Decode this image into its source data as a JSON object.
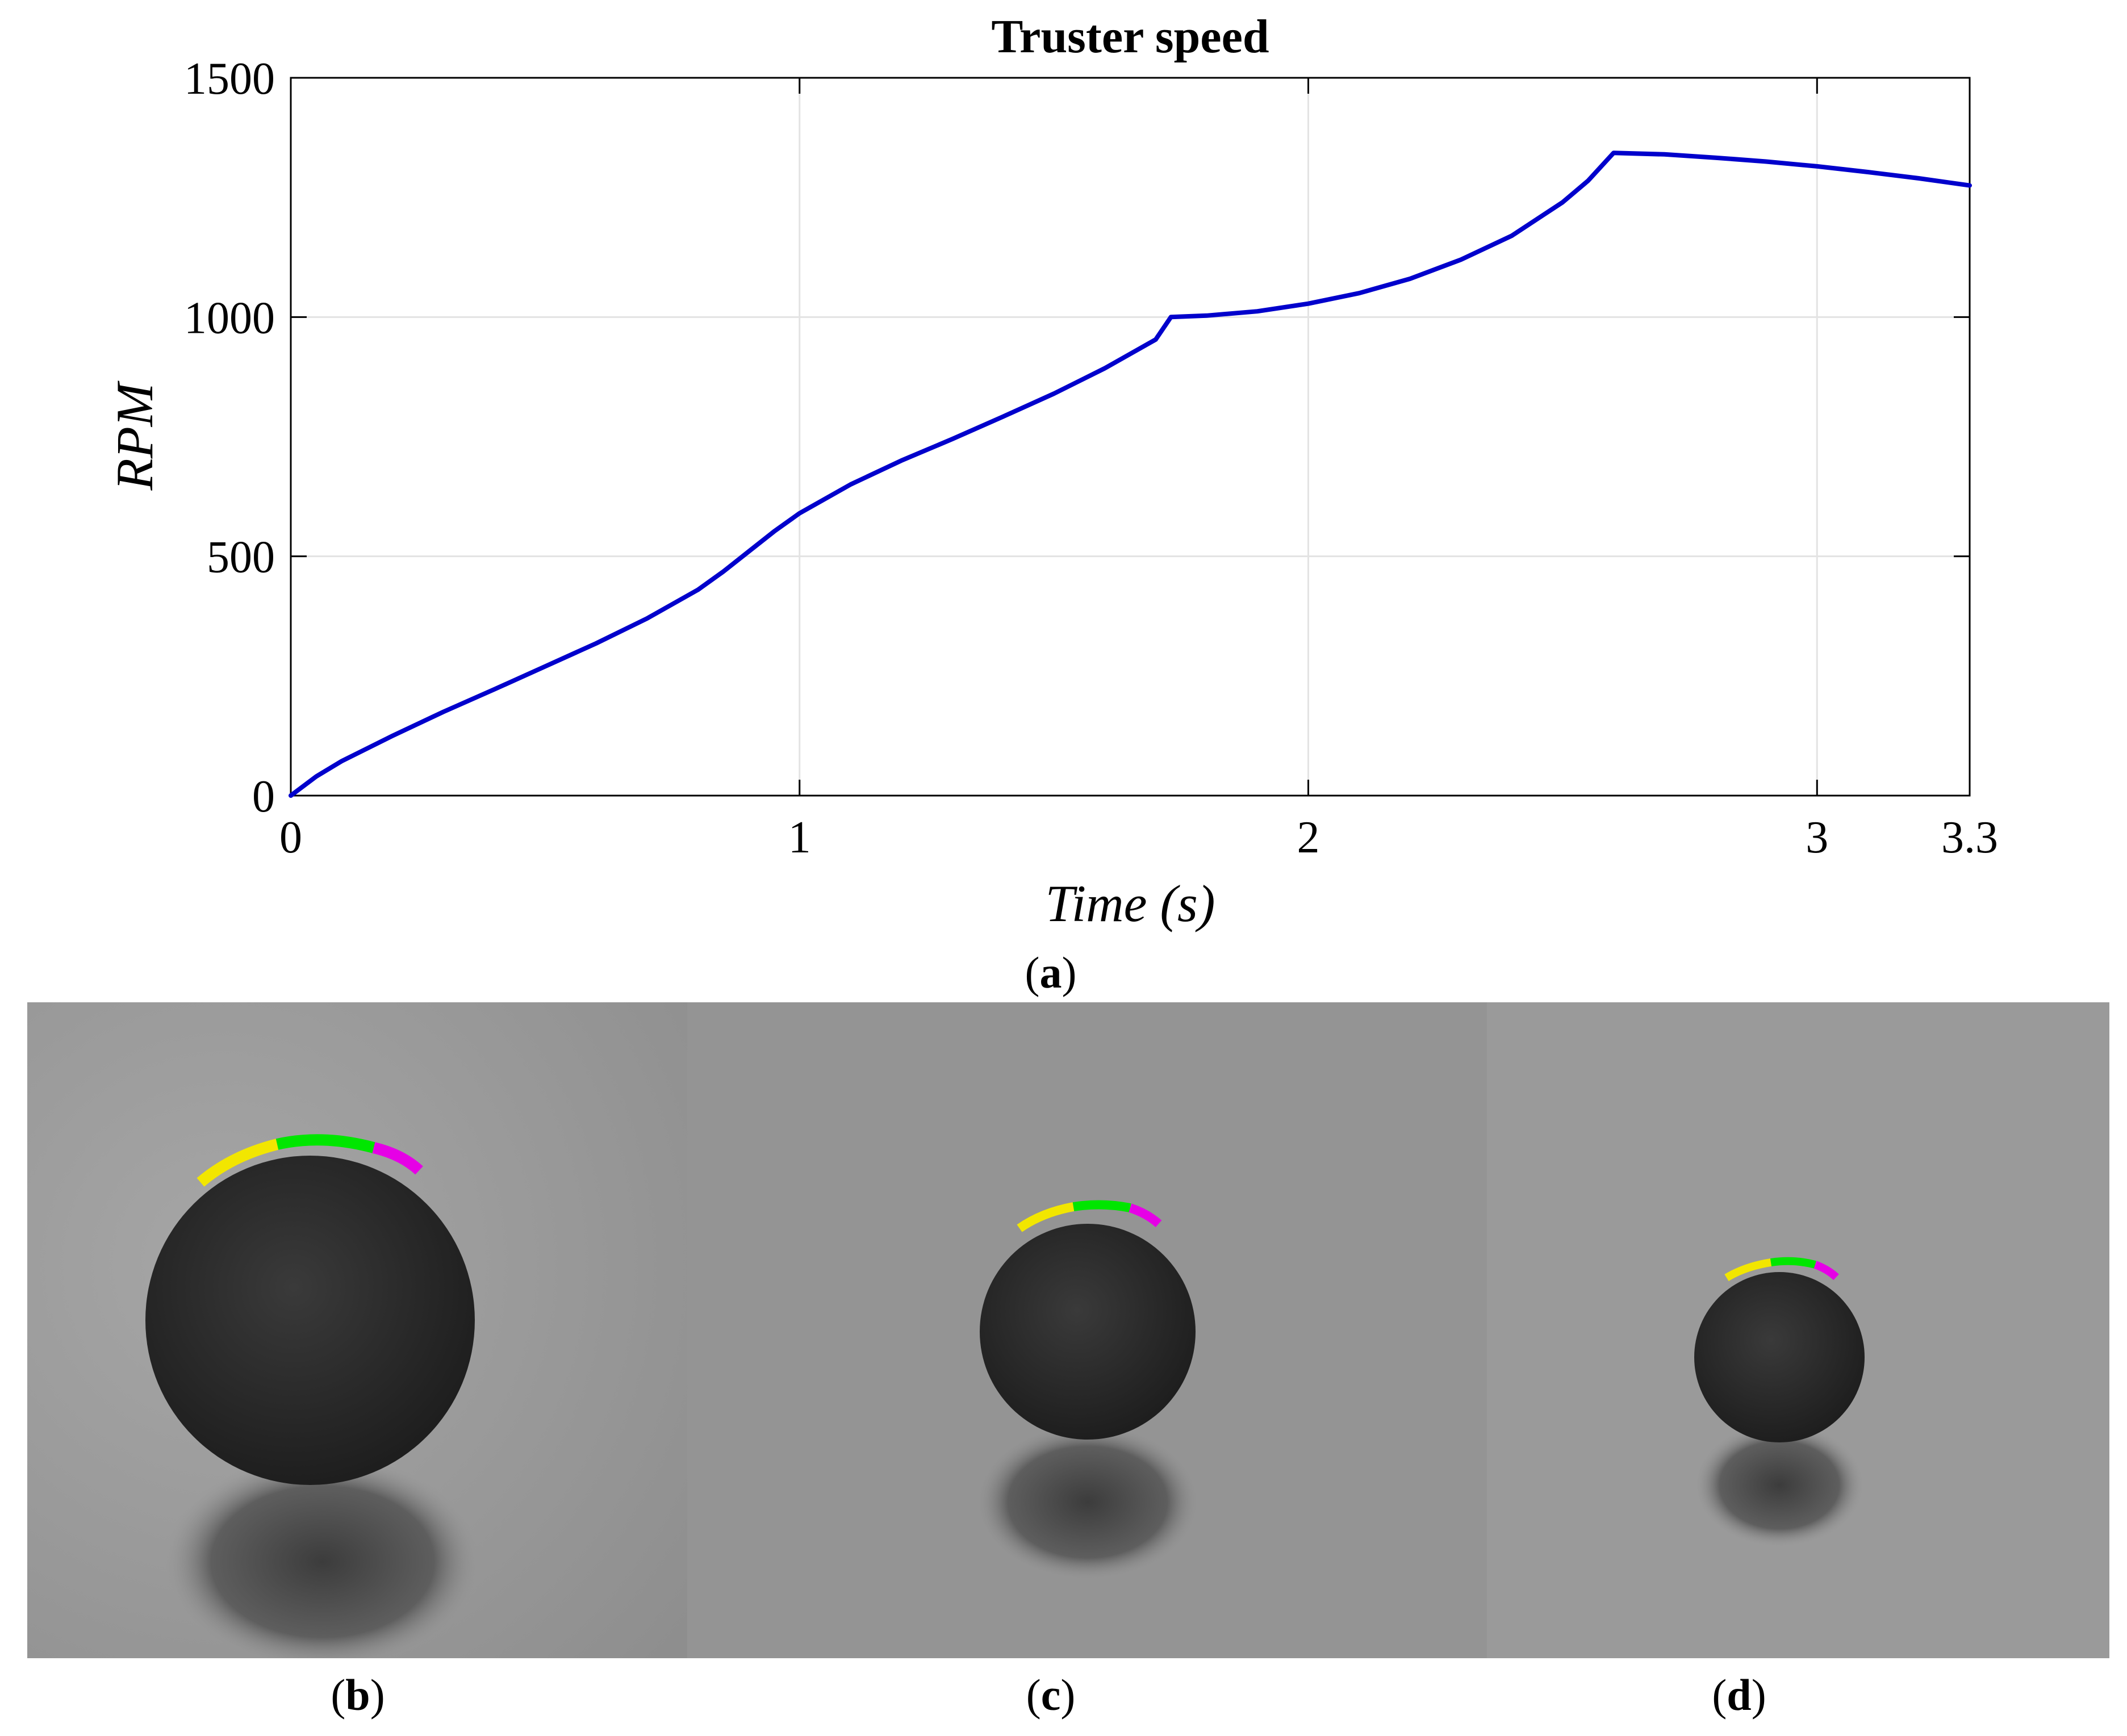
{
  "chart_data": {
    "type": "line",
    "title": "Truster speed",
    "xlabel": "Time (s)",
    "ylabel": "RPM",
    "xlim": [
      0,
      3.3
    ],
    "ylim": [
      0,
      1500
    ],
    "xticks": [
      0,
      1,
      2,
      3,
      3.3
    ],
    "xtick_labels": [
      "0",
      "1",
      "2",
      "3",
      "3.3"
    ],
    "yticks": [
      0,
      500,
      1000,
      1500
    ],
    "ytick_labels": [
      "0",
      "500",
      "1000",
      "1500"
    ],
    "grid": true,
    "series": [
      {
        "color": "#0000cc",
        "x": [
          0,
          0.05,
          0.1,
          0.2,
          0.3,
          0.4,
          0.5,
          0.6,
          0.7,
          0.8,
          0.85,
          0.9,
          0.95,
          1.0,
          1.1,
          1.2,
          1.3,
          1.4,
          1.5,
          1.6,
          1.7,
          1.73,
          1.8,
          1.9,
          2.0,
          2.1,
          2.2,
          2.3,
          2.4,
          2.5,
          2.55,
          2.6,
          2.7,
          2.8,
          2.9,
          3.0,
          3.1,
          3.2,
          3.3
        ],
        "y": [
          0,
          40,
          72,
          125,
          175,
          222,
          270,
          318,
          370,
          430,
          468,
          510,
          552,
          590,
          650,
          700,
          745,
          792,
          840,
          893,
          953,
          1000,
          1003,
          1012,
          1028,
          1050,
          1080,
          1120,
          1170,
          1240,
          1285,
          1343,
          1340,
          1333,
          1325,
          1315,
          1303,
          1290,
          1275
        ]
      }
    ]
  },
  "captions": {
    "a": "a",
    "b": "b",
    "c": "c",
    "d": "d"
  }
}
